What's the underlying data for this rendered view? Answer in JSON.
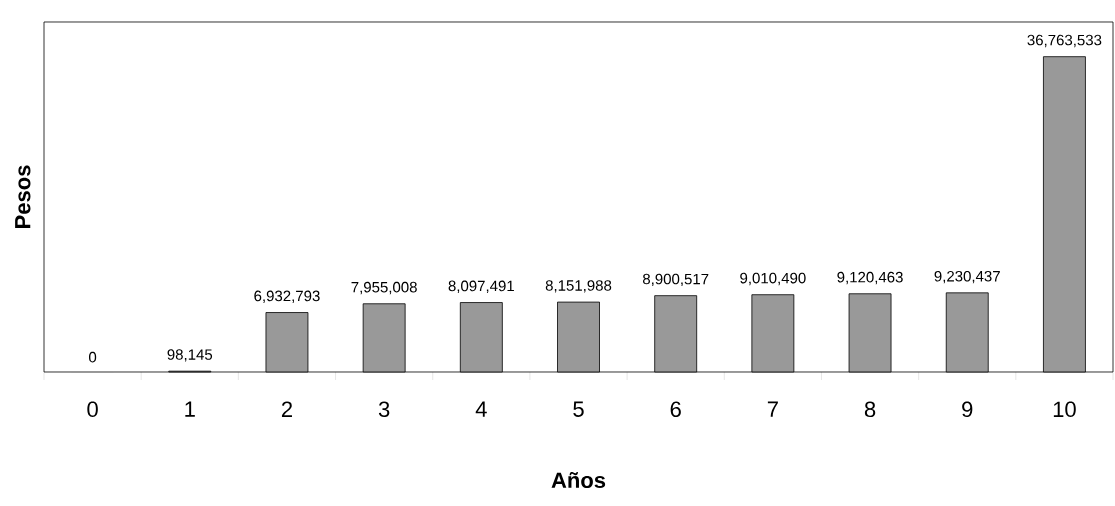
{
  "chart_data": {
    "type": "bar",
    "xlabel": "Años",
    "ylabel": "Pesos",
    "categories": [
      "0",
      "1",
      "2",
      "3",
      "4",
      "5",
      "6",
      "7",
      "8",
      "9",
      "10"
    ],
    "values": [
      0,
      98145,
      6932793,
      7955008,
      8097491,
      8151988,
      8900517,
      9010490,
      9120463,
      9230437,
      36763533
    ],
    "value_labels": [
      "0",
      "98,145",
      "6,932,793",
      "7,955,008",
      "8,097,491",
      "8,151,988",
      "8,900,517",
      "9,010,490",
      "9,120,463",
      "9,230,437",
      "36,763,533"
    ],
    "color": "#999999"
  }
}
